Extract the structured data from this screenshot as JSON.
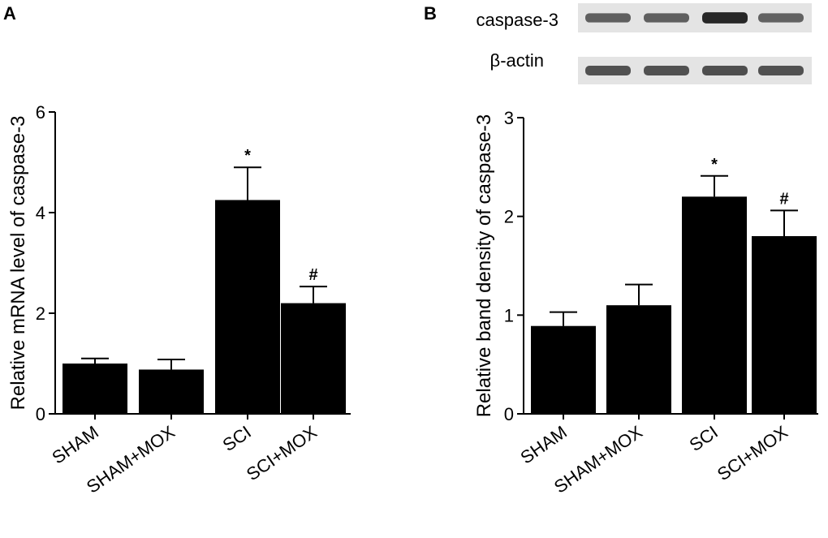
{
  "panels": [
    {
      "letter": "A",
      "blot": null
    },
    {
      "letter": "B",
      "blot": {
        "rows": [
          {
            "label": "caspase-3",
            "band_intensity": [
              0.62,
              0.62,
              0.95,
              0.6
            ]
          },
          {
            "label": "β-actin",
            "band_intensity": [
              0.7,
              0.7,
              0.72,
              0.7
            ]
          }
        ]
      }
    }
  ],
  "chart_data": [
    {
      "type": "bar",
      "panel": "A",
      "categories": [
        "SHAM",
        "SHAM+MOX",
        "SCI",
        "SCI+MOX"
      ],
      "values": [
        1.0,
        0.88,
        4.25,
        2.2
      ],
      "errors": [
        0.1,
        0.2,
        0.65,
        0.33
      ],
      "annotations": [
        "",
        "",
        "*",
        "#"
      ],
      "ylabel": "Relative mRNA level of caspase-3",
      "xlabel": "",
      "ylim": [
        0,
        6
      ],
      "yticks": [
        0,
        2,
        4,
        6
      ],
      "bar_color": "#000000",
      "grid": false
    },
    {
      "type": "bar",
      "panel": "B",
      "categories": [
        "SHAM",
        "SHAM+MOX",
        "SCI",
        "SCI+MOX"
      ],
      "values": [
        0.89,
        1.1,
        2.2,
        1.8
      ],
      "errors": [
        0.14,
        0.21,
        0.21,
        0.26
      ],
      "annotations": [
        "",
        "",
        "*",
        "#"
      ],
      "ylabel": "Relative band density of caspase-3",
      "xlabel": "",
      "ylim": [
        0,
        3
      ],
      "yticks": [
        0,
        1,
        2,
        3
      ],
      "bar_color": "#000000",
      "grid": false
    }
  ]
}
